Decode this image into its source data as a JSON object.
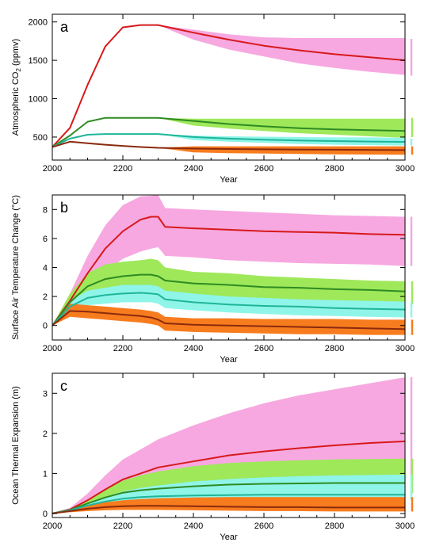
{
  "chart_data": [
    {
      "type": "line",
      "panel_letter": "a",
      "xlabel": "Year",
      "ylabel": "Atmospheric CO",
      "ylabel_sub": "2",
      "ylabel_tail": " (ppmv)",
      "xlim": [
        2000,
        3000
      ],
      "ylim": [
        200,
        2100
      ],
      "xticks": [
        2000,
        2200,
        2400,
        2600,
        2800,
        3000
      ],
      "yticks": [
        500,
        1000,
        1500,
        2000
      ],
      "series": [
        {
          "color": "#d7191c",
          "band_color": "#f7a8e0",
          "x": [
            2000,
            2050,
            2100,
            2150,
            2200,
            2250,
            2300,
            2400,
            2500,
            2600,
            2700,
            2800,
            2900,
            3000
          ],
          "y": [
            370,
            620,
            1180,
            1680,
            1930,
            1960,
            1960,
            1860,
            1770,
            1690,
            1630,
            1580,
            1540,
            1500
          ],
          "lo": [
            370,
            620,
            1180,
            1680,
            1930,
            1960,
            1960,
            1770,
            1640,
            1550,
            1460,
            1400,
            1350,
            1310
          ],
          "hi": [
            370,
            620,
            1180,
            1680,
            1930,
            1960,
            1960,
            1900,
            1840,
            1800,
            1790,
            1790,
            1790,
            1790
          ]
        },
        {
          "color": "#2e8b22",
          "band_color": "#9ee85a",
          "x": [
            2000,
            2050,
            2100,
            2150,
            2200,
            2250,
            2300,
            2400,
            2500,
            2600,
            2700,
            2800,
            2900,
            3000
          ],
          "y": [
            370,
            520,
            700,
            750,
            750,
            750,
            750,
            710,
            670,
            640,
            615,
            600,
            590,
            580
          ],
          "lo": [
            370,
            520,
            700,
            750,
            750,
            750,
            750,
            650,
            610,
            580,
            550,
            530,
            510,
            490
          ],
          "hi": [
            370,
            520,
            700,
            750,
            750,
            750,
            750,
            740,
            740,
            740,
            740,
            740,
            740,
            740
          ]
        },
        {
          "color": "#1fb59a",
          "band_color": "#8ff5e8",
          "x": [
            2000,
            2050,
            2100,
            2150,
            2200,
            2250,
            2300,
            2400,
            2500,
            2600,
            2700,
            2800,
            2900,
            3000
          ],
          "y": [
            370,
            480,
            530,
            540,
            540,
            540,
            540,
            500,
            480,
            465,
            455,
            448,
            442,
            438
          ],
          "lo": [
            370,
            480,
            530,
            540,
            540,
            540,
            540,
            460,
            440,
            425,
            410,
            400,
            395,
            390
          ],
          "hi": [
            370,
            480,
            530,
            540,
            540,
            540,
            540,
            520,
            510,
            505,
            500,
            495,
            495,
            490
          ]
        },
        {
          "color": "#8b2a0e",
          "band_color": "#f77c1e",
          "x": [
            2000,
            2050,
            2100,
            2150,
            2200,
            2250,
            2300,
            2400,
            2500,
            2600,
            2700,
            2800,
            2900,
            3000
          ],
          "y": [
            370,
            440,
            420,
            400,
            385,
            370,
            360,
            350,
            345,
            340,
            337,
            335,
            333,
            330
          ],
          "lo": [
            370,
            440,
            420,
            400,
            385,
            370,
            360,
            300,
            290,
            285,
            280,
            275,
            272,
            270
          ],
          "hi": [
            370,
            440,
            420,
            400,
            385,
            370,
            360,
            380,
            380,
            380,
            380,
            380,
            380,
            380
          ]
        }
      ],
      "side_bars": [
        {
          "color": "#f7a8e0",
          "lo": 1300,
          "hi": 1780
        },
        {
          "color": "#9ee85a",
          "lo": 500,
          "hi": 750
        },
        {
          "color": "#8ff5e8",
          "lo": 390,
          "hi": 480
        },
        {
          "color": "#f77c1e",
          "lo": 270,
          "hi": 380
        }
      ]
    },
    {
      "type": "line",
      "panel_letter": "b",
      "xlabel": "Year",
      "ylabel": "Surface Air Temperature Change (°C)",
      "xlim": [
        2000,
        3000
      ],
      "ylim": [
        -1,
        9
      ],
      "xticks": [
        2000,
        2200,
        2400,
        2600,
        2800,
        3000
      ],
      "yticks": [
        0,
        2,
        4,
        6,
        8
      ],
      "series": [
        {
          "color": "#d7191c",
          "band_color": "#f7a8e0",
          "x": [
            2000,
            2050,
            2100,
            2150,
            2200,
            2250,
            2280,
            2300,
            2320,
            2400,
            2500,
            2600,
            2700,
            2800,
            2900,
            3000
          ],
          "y": [
            0,
            1.7,
            3.6,
            5.3,
            6.5,
            7.3,
            7.5,
            7.5,
            6.8,
            6.7,
            6.6,
            6.5,
            6.45,
            6.4,
            6.3,
            6.25
          ],
          "lo": [
            0,
            1.2,
            2.6,
            3.7,
            4.6,
            5.1,
            5.3,
            5.4,
            4.8,
            4.7,
            4.5,
            4.4,
            4.3,
            4.25,
            4.2,
            4.1
          ],
          "hi": [
            0,
            2.2,
            4.8,
            6.9,
            8.3,
            8.9,
            8.95,
            9.0,
            8.1,
            8.0,
            7.9,
            7.8,
            7.7,
            7.6,
            7.55,
            7.5
          ]
        },
        {
          "color": "#2e8b22",
          "band_color": "#9ee85a",
          "x": [
            2000,
            2050,
            2100,
            2150,
            2200,
            2250,
            2280,
            2300,
            2320,
            2400,
            2500,
            2600,
            2700,
            2800,
            2900,
            3000
          ],
          "y": [
            0,
            1.6,
            2.7,
            3.2,
            3.4,
            3.5,
            3.5,
            3.4,
            3.1,
            2.9,
            2.8,
            2.65,
            2.6,
            2.5,
            2.45,
            2.35
          ],
          "lo": [
            0,
            1.1,
            2.0,
            2.4,
            2.5,
            2.6,
            2.6,
            2.5,
            2.2,
            2.05,
            1.9,
            1.75,
            1.65,
            1.6,
            1.5,
            1.45
          ],
          "hi": [
            0,
            2.2,
            3.6,
            4.2,
            4.4,
            4.5,
            4.6,
            4.5,
            4.0,
            3.7,
            3.6,
            3.4,
            3.3,
            3.2,
            3.1,
            3.05
          ]
        },
        {
          "color": "#1fb59a",
          "band_color": "#8ff5e8",
          "x": [
            2000,
            2050,
            2100,
            2150,
            2200,
            2250,
            2280,
            2300,
            2320,
            2400,
            2500,
            2600,
            2700,
            2800,
            2900,
            3000
          ],
          "y": [
            0,
            1.3,
            1.9,
            2.1,
            2.2,
            2.25,
            2.2,
            2.15,
            1.8,
            1.6,
            1.45,
            1.35,
            1.3,
            1.2,
            1.15,
            1.1
          ],
          "lo": [
            0,
            0.9,
            1.4,
            1.5,
            1.6,
            1.6,
            1.6,
            1.5,
            1.2,
            1.05,
            0.9,
            0.8,
            0.7,
            0.65,
            0.6,
            0.55
          ],
          "hi": [
            0,
            1.7,
            2.4,
            2.6,
            2.8,
            2.8,
            2.8,
            2.7,
            2.4,
            2.2,
            2.0,
            1.9,
            1.8,
            1.75,
            1.7,
            1.65
          ]
        },
        {
          "color": "#8b2a0e",
          "band_color": "#f77c1e",
          "x": [
            2000,
            2050,
            2100,
            2150,
            2200,
            2250,
            2280,
            2300,
            2320,
            2400,
            2500,
            2600,
            2700,
            2800,
            2900,
            3000
          ],
          "y": [
            0,
            1.0,
            0.95,
            0.85,
            0.75,
            0.65,
            0.55,
            0.4,
            0.15,
            0.05,
            0.0,
            -0.05,
            -0.1,
            -0.15,
            -0.2,
            -0.25
          ],
          "lo": [
            0,
            0.6,
            0.5,
            0.4,
            0.3,
            0.2,
            0.1,
            0.0,
            -0.35,
            -0.45,
            -0.5,
            -0.55,
            -0.6,
            -0.6,
            -0.65,
            -0.65
          ],
          "hi": [
            0,
            1.5,
            1.4,
            1.3,
            1.2,
            1.1,
            1.0,
            0.9,
            0.6,
            0.5,
            0.5,
            0.45,
            0.45,
            0.45,
            0.4,
            0.4
          ]
        }
      ],
      "side_bars": [
        {
          "color": "#f7a8e0",
          "lo": 4.1,
          "hi": 7.5
        },
        {
          "color": "#9ee85a",
          "lo": 1.45,
          "hi": 3.05
        },
        {
          "color": "#8ff5e8",
          "lo": 0.55,
          "hi": 1.65
        },
        {
          "color": "#f77c1e",
          "lo": -0.65,
          "hi": 0.4
        }
      ]
    },
    {
      "type": "line",
      "panel_letter": "c",
      "xlabel": "Year",
      "ylabel": "Ocean Thermal Expansion (m)",
      "xlim": [
        2000,
        3000
      ],
      "ylim": [
        -0.1,
        3.5
      ],
      "xticks": [
        2000,
        2200,
        2400,
        2600,
        2800,
        3000
      ],
      "yticks": [
        0,
        1,
        2,
        3
      ],
      "series": [
        {
          "color": "#d7191c",
          "band_color": "#f7a8e0",
          "x": [
            2000,
            2050,
            2100,
            2150,
            2200,
            2250,
            2300,
            2400,
            2500,
            2600,
            2700,
            2800,
            2900,
            3000
          ],
          "y": [
            0,
            0.1,
            0.33,
            0.6,
            0.85,
            1.0,
            1.15,
            1.3,
            1.45,
            1.55,
            1.63,
            1.7,
            1.76,
            1.8
          ],
          "lo": [
            0,
            0.08,
            0.22,
            0.38,
            0.5,
            0.58,
            0.65,
            0.72,
            0.77,
            0.8,
            0.83,
            0.85,
            0.87,
            0.88
          ],
          "hi": [
            0,
            0.14,
            0.5,
            0.95,
            1.35,
            1.6,
            1.85,
            2.2,
            2.5,
            2.75,
            2.95,
            3.1,
            3.25,
            3.4
          ]
        },
        {
          "color": "#2e8b22",
          "band_color": "#9ee85a",
          "x": [
            2000,
            2050,
            2100,
            2150,
            2200,
            2250,
            2300,
            2400,
            2500,
            2600,
            2700,
            2800,
            2900,
            3000
          ],
          "y": [
            0,
            0.09,
            0.25,
            0.4,
            0.52,
            0.58,
            0.62,
            0.68,
            0.72,
            0.74,
            0.75,
            0.76,
            0.76,
            0.76
          ],
          "lo": [
            0,
            0.07,
            0.18,
            0.28,
            0.36,
            0.4,
            0.42,
            0.46,
            0.48,
            0.5,
            0.5,
            0.51,
            0.51,
            0.51
          ],
          "hi": [
            0,
            0.11,
            0.35,
            0.6,
            0.82,
            0.95,
            1.05,
            1.18,
            1.26,
            1.3,
            1.33,
            1.35,
            1.36,
            1.37
          ]
        },
        {
          "color": "#1fb59a",
          "band_color": "#8ff5e8",
          "x": [
            2000,
            2050,
            2100,
            2150,
            2200,
            2250,
            2300,
            2400,
            2500,
            2600,
            2700,
            2800,
            2900,
            3000
          ],
          "y": [
            0,
            0.08,
            0.2,
            0.3,
            0.37,
            0.41,
            0.43,
            0.45,
            0.46,
            0.47,
            0.47,
            0.47,
            0.47,
            0.47
          ],
          "lo": [
            0,
            0.06,
            0.15,
            0.23,
            0.28,
            0.3,
            0.32,
            0.33,
            0.34,
            0.34,
            0.34,
            0.34,
            0.34,
            0.34
          ],
          "hi": [
            0,
            0.1,
            0.27,
            0.42,
            0.55,
            0.64,
            0.7,
            0.8,
            0.86,
            0.9,
            0.93,
            0.95,
            0.96,
            0.97
          ]
        },
        {
          "color": "#8b2a0e",
          "band_color": "#f77c1e",
          "x": [
            2000,
            2050,
            2100,
            2150,
            2200,
            2250,
            2300,
            2400,
            2500,
            2600,
            2700,
            2800,
            2900,
            3000
          ],
          "y": [
            0,
            0.06,
            0.12,
            0.16,
            0.18,
            0.19,
            0.19,
            0.18,
            0.17,
            0.16,
            0.16,
            0.15,
            0.15,
            0.15
          ],
          "lo": [
            0,
            0.03,
            0.06,
            0.08,
            0.09,
            0.09,
            0.09,
            0.08,
            0.07,
            0.06,
            0.06,
            0.05,
            0.05,
            0.05
          ],
          "hi": [
            0,
            0.08,
            0.2,
            0.28,
            0.33,
            0.36,
            0.38,
            0.4,
            0.41,
            0.41,
            0.41,
            0.41,
            0.41,
            0.41
          ]
        }
      ],
      "side_bars": [
        {
          "color": "#f7a8e0",
          "lo": 0.88,
          "hi": 3.4
        },
        {
          "color": "#9ee85a",
          "lo": 0.51,
          "hi": 1.37
        },
        {
          "color": "#8ff5e8",
          "lo": 0.34,
          "hi": 0.97
        },
        {
          "color": "#f77c1e",
          "lo": 0.05,
          "hi": 0.41
        }
      ]
    }
  ]
}
